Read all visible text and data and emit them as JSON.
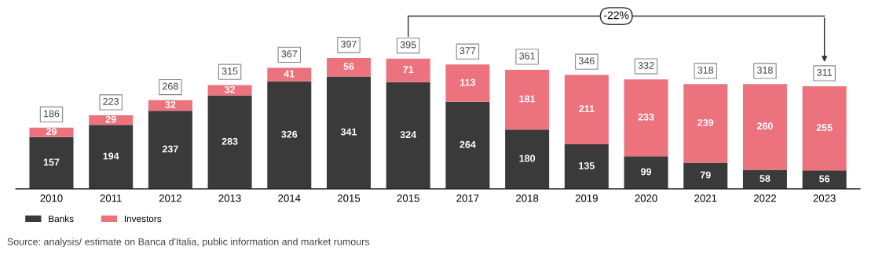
{
  "chart_data": {
    "type": "bar",
    "stacked": true,
    "data_labels": true,
    "legend": "bottom left",
    "grid": false,
    "tick_labels": "x",
    "categories": [
      "2010",
      "2011",
      "2012",
      "2013",
      "2014",
      "2015",
      "2015",
      "2017",
      "2018",
      "2019",
      "2020",
      "2021",
      "2022",
      "2023"
    ],
    "series": [
      {
        "name": "Banks",
        "color": "#3a3a3a",
        "values": [
          157,
          194,
          237,
          283,
          326,
          341,
          324,
          264,
          180,
          135,
          99,
          79,
          58,
          56
        ]
      },
      {
        "name": "Investors",
        "color": "#ec727e",
        "values": [
          29,
          29,
          32,
          32,
          41,
          56,
          71,
          113,
          181,
          211,
          233,
          239,
          260,
          255
        ]
      }
    ],
    "totals": [
      "186",
      "223",
      "268",
      "315",
      "367",
      "397",
      "395",
      "377",
      "361",
      "346",
      "332",
      "318",
      "318",
      "311"
    ],
    "annotations": [
      "-22%",
      "Source: analysis/ estimate on Banca d'Italia, public information and market rumours"
    ]
  }
}
